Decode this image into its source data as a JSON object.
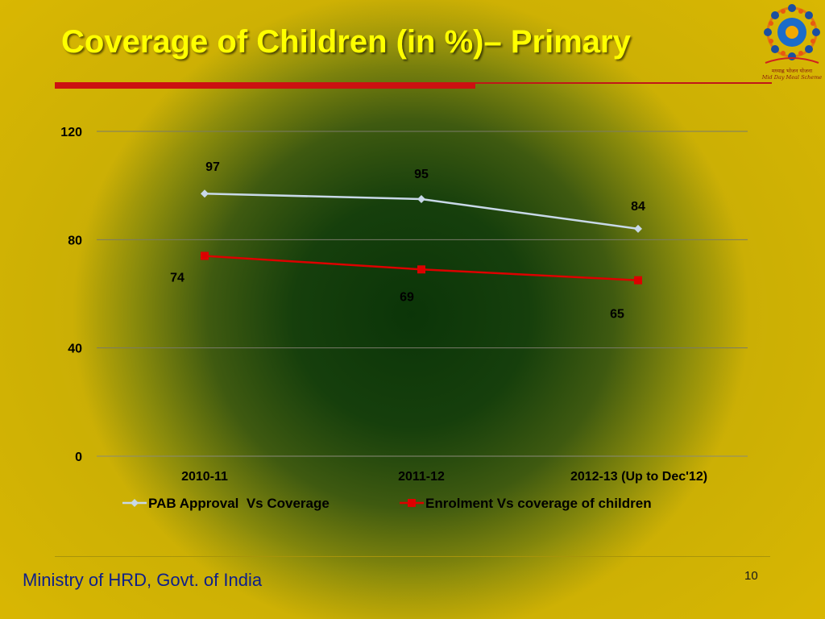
{
  "slide": {
    "title": "Coverage of Children (in %)– Primary",
    "footer": "Ministry of HRD, Govt. of India",
    "page_number": "10",
    "logo_text": [
      "मध्याह्न भोजन योजना",
      "Mid Day Meal Scheme"
    ]
  },
  "chart_data": {
    "type": "line",
    "title": "",
    "xlabel": "",
    "ylabel": "",
    "categories": [
      "2010-11",
      "2011-12",
      "2012-13 (Up to Dec'12)"
    ],
    "ylim": [
      0,
      120
    ],
    "yticks": [
      0,
      40,
      80,
      120
    ],
    "grid": true,
    "legend_position": "bottom",
    "series": [
      {
        "name": "PAB Approval  Vs Coverage",
        "values": [
          97,
          95,
          84
        ],
        "color": "#c8d8e8",
        "marker": "diamond"
      },
      {
        "name": "Enrolment Vs coverage of children",
        "values": [
          74,
          69,
          65
        ],
        "color": "#dd0000",
        "marker": "square"
      }
    ]
  }
}
